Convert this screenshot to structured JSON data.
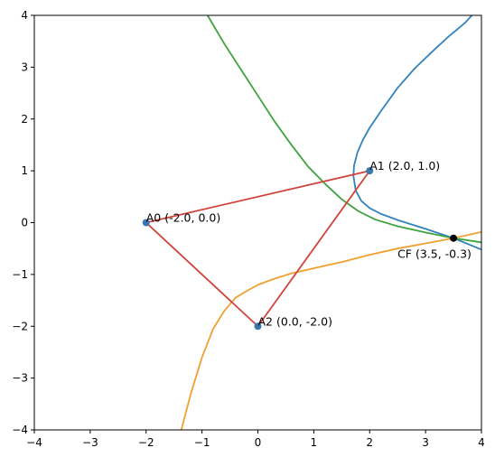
{
  "chart_data": {
    "type": "line",
    "title": "",
    "xlabel": "",
    "ylabel": "",
    "xlim": [
      -4,
      4
    ],
    "ylim": [
      -4,
      4
    ],
    "xticks": [
      -4,
      -3,
      -2,
      -1,
      0,
      1,
      2,
      3,
      4
    ],
    "yticks": [
      -4,
      -3,
      -2,
      -1,
      0,
      1,
      2,
      3,
      4
    ],
    "grid": false,
    "legend": "none",
    "colors": {
      "curve_blue": "#3182bd",
      "curve_green": "#3ea33e",
      "curve_orange": "#f0a030",
      "triangle": "#d0433a",
      "point": "#3a78b0",
      "cf_point": "#000000"
    },
    "series": [
      {
        "color": "#3182bd",
        "points": [
          [
            4.0,
            -0.52
          ],
          [
            3.5,
            -0.3
          ],
          [
            3.0,
            -0.12
          ],
          [
            2.5,
            0.05
          ],
          [
            2.2,
            0.17
          ],
          [
            2.0,
            0.28
          ],
          [
            1.85,
            0.42
          ],
          [
            1.75,
            0.62
          ],
          [
            1.71,
            0.9
          ],
          [
            1.72,
            1.1
          ],
          [
            1.78,
            1.35
          ],
          [
            1.88,
            1.6
          ],
          [
            2.0,
            1.83
          ],
          [
            2.2,
            2.15
          ],
          [
            2.5,
            2.6
          ],
          [
            2.8,
            2.97
          ],
          [
            3.1,
            3.28
          ],
          [
            3.4,
            3.58
          ],
          [
            3.7,
            3.85
          ],
          [
            3.83,
            4.0
          ]
        ]
      },
      {
        "color": "#3ea33e",
        "points": [
          [
            -0.9,
            4.0
          ],
          [
            -0.6,
            3.45
          ],
          [
            -0.3,
            2.95
          ],
          [
            0.0,
            2.45
          ],
          [
            0.3,
            1.95
          ],
          [
            0.6,
            1.5
          ],
          [
            0.9,
            1.08
          ],
          [
            1.2,
            0.75
          ],
          [
            1.5,
            0.45
          ],
          [
            1.8,
            0.22
          ],
          [
            2.1,
            0.06
          ],
          [
            2.5,
            -0.07
          ],
          [
            3.0,
            -0.19
          ],
          [
            3.5,
            -0.3
          ],
          [
            4.0,
            -0.38
          ]
        ]
      },
      {
        "color": "#f0a030",
        "points": [
          [
            -1.37,
            -4.0
          ],
          [
            -1.2,
            -3.3
          ],
          [
            -1.0,
            -2.6
          ],
          [
            -0.8,
            -2.05
          ],
          [
            -0.6,
            -1.7
          ],
          [
            -0.4,
            -1.45
          ],
          [
            -0.2,
            -1.32
          ],
          [
            0.0,
            -1.2
          ],
          [
            0.3,
            -1.08
          ],
          [
            0.6,
            -0.98
          ],
          [
            1.0,
            -0.88
          ],
          [
            1.5,
            -0.76
          ],
          [
            2.0,
            -0.62
          ],
          [
            2.5,
            -0.5
          ],
          [
            3.0,
            -0.4
          ],
          [
            3.5,
            -0.3
          ],
          [
            4.0,
            -0.18
          ]
        ]
      },
      {
        "color": "#d0433a",
        "points": [
          [
            -2.0,
            0.0
          ],
          [
            2.0,
            1.0
          ],
          [
            0.0,
            -2.0
          ],
          [
            -2.0,
            0.0
          ]
        ]
      }
    ],
    "points": [
      {
        "label": "A0 (-2.0, 0.0)",
        "x": -2.0,
        "y": 0.0
      },
      {
        "label": "A1 (2.0, 1.0)",
        "x": 2.0,
        "y": 1.0
      },
      {
        "label": "A2 (0.0, -2.0)",
        "x": 0.0,
        "y": -2.0
      }
    ],
    "cf_point": {
      "label": "CF (3.5, -0.3)",
      "x": 3.5,
      "y": -0.3
    }
  }
}
